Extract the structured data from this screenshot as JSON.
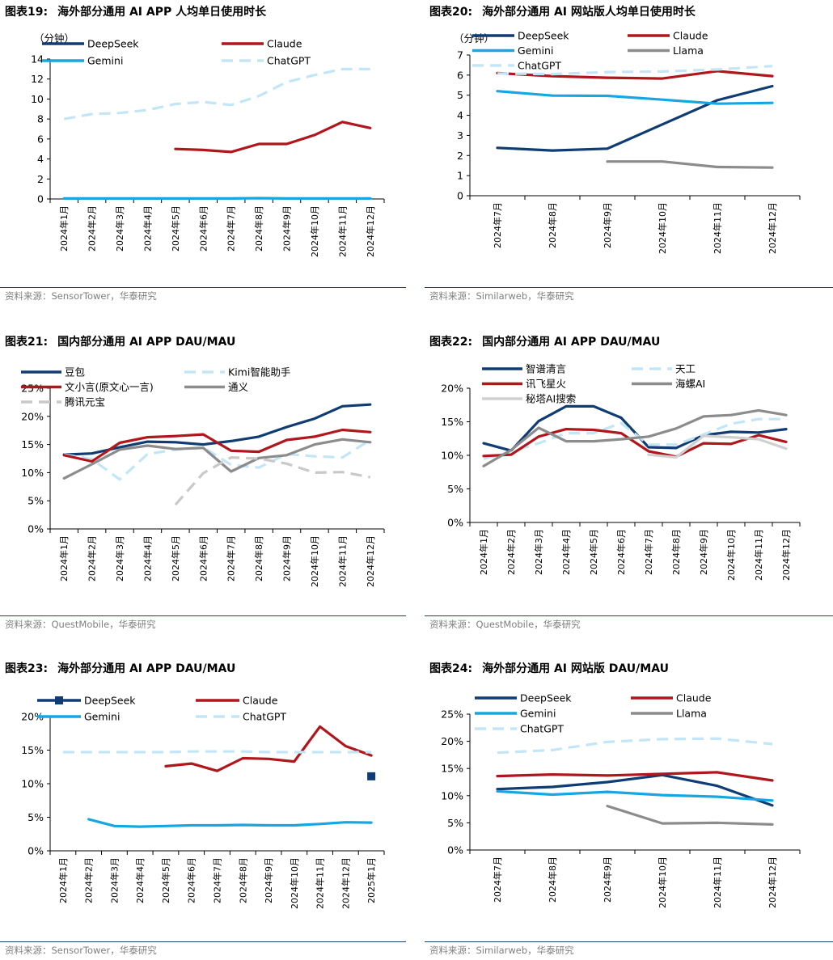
{
  "charts": [
    {
      "id": "fig19",
      "label": "图表19:",
      "title": "海外部分通用 AI APP 人均单日使用时长",
      "source": "资料来源：SensorTower，华泰研究",
      "chart_data": {
        "type": "line",
        "unit_label": "（分钟）",
        "categories": [
          "2024年1月",
          "2024年2月",
          "2024年3月",
          "2024年4月",
          "2024年5月",
          "2024年6月",
          "2024年7月",
          "2024年8月",
          "2024年9月",
          "2024年10月",
          "2024年11月",
          "2024年12月"
        ],
        "ylim": [
          0,
          14
        ],
        "yticks": [
          0,
          2,
          4,
          6,
          8,
          10,
          12,
          14
        ],
        "ytick_labels": [
          "0",
          "2",
          "4",
          "6",
          "8",
          "10",
          "12",
          "14"
        ],
        "legend_columns": 2,
        "series": [
          {
            "name": "DeepSeek",
            "color": "#0f3c73",
            "dash": false,
            "values": [
              null,
              null,
              null,
              null,
              null,
              null,
              null,
              null,
              null,
              null,
              null,
              null
            ]
          },
          {
            "name": "Claude",
            "color": "#b0161c",
            "dash": false,
            "values": [
              null,
              null,
              null,
              null,
              5.0,
              4.9,
              4.7,
              5.5,
              5.5,
              6.4,
              7.7,
              7.1
            ]
          },
          {
            "name": "Gemini",
            "color": "#16a7e0",
            "dash": false,
            "values": [
              0.05,
              0.05,
              0.05,
              0.05,
              0.05,
              0.05,
              0.05,
              0.08,
              0.05,
              0.05,
              0.05,
              0.05
            ]
          },
          {
            "name": "ChatGPT",
            "color": "#c3e6f6",
            "dash": true,
            "values": [
              8.0,
              8.5,
              8.6,
              8.9,
              9.5,
              9.7,
              9.4,
              10.3,
              11.7,
              12.4,
              13.0,
              13.0
            ]
          }
        ]
      }
    },
    {
      "id": "fig20",
      "label": "图表20:",
      "title": "海外部分通用 AI 网站版人均单日使用时长",
      "source": "资料来源：Similarweb，华泰研究",
      "chart_data": {
        "type": "line",
        "unit_label": "（分钟）",
        "categories": [
          "2024年7月",
          "2024年8月",
          "2024年9月",
          "2024年10月",
          "2024年11月",
          "2024年12月"
        ],
        "ylim": [
          0,
          7
        ],
        "yticks": [
          0,
          1,
          2,
          3,
          4,
          5,
          6,
          7
        ],
        "ytick_labels": [
          "0",
          "1",
          "2",
          "3",
          "4",
          "5",
          "6",
          "7"
        ],
        "legend_columns": 2,
        "series": [
          {
            "name": "DeepSeek",
            "color": "#0f3c73",
            "dash": false,
            "values": [
              2.38,
              2.25,
              2.34,
              3.55,
              4.75,
              5.45
            ]
          },
          {
            "name": "Claude",
            "color": "#b0161c",
            "dash": false,
            "values": [
              6.1,
              5.95,
              5.87,
              5.83,
              6.2,
              5.95
            ]
          },
          {
            "name": "Gemini",
            "color": "#16a7e0",
            "dash": false,
            "values": [
              5.2,
              4.98,
              4.97,
              4.78,
              4.58,
              4.62
            ]
          },
          {
            "name": "Llama",
            "color": "#8c8c8c",
            "dash": false,
            "values": [
              null,
              null,
              1.7,
              1.7,
              1.43,
              1.4
            ]
          },
          {
            "name": "ChatGPT",
            "color": "#c3e6f6",
            "dash": true,
            "values": [
              6.08,
              6.05,
              6.15,
              6.18,
              6.28,
              6.45
            ]
          }
        ]
      }
    },
    {
      "id": "fig21",
      "label": "图表21:",
      "title": "国内部分通用 AI APP DAU/MAU",
      "source": "资料来源：QuestMobile，华泰研究",
      "chart_data": {
        "type": "line",
        "unit_label": "",
        "categories": [
          "2024年1月",
          "2024年2月",
          "2024年3月",
          "2024年4月",
          "2024年5月",
          "2024年6月",
          "2024年7月",
          "2024年8月",
          "2024年9月",
          "2024年10月",
          "2024年11月",
          "2024年12月"
        ],
        "ylim": [
          0,
          25
        ],
        "yticks": [
          0,
          5,
          10,
          15,
          20,
          25
        ],
        "ytick_labels": [
          "0%",
          "5%",
          "10%",
          "15%",
          "20%",
          "25%"
        ],
        "legend_columns": 2,
        "series": [
          {
            "name": "豆包",
            "color": "#0f3c73",
            "dash": false,
            "values": [
              13.2,
              13.4,
              14.5,
              15.5,
              15.4,
              15.0,
              15.6,
              16.4,
              18.1,
              19.6,
              21.8,
              22.1
            ]
          },
          {
            "name": "Kimi智能助手",
            "color": "#c3e6f6",
            "dash": true,
            "values": [
              13.2,
              12.4,
              8.8,
              13.3,
              14.1,
              14.5,
              11.4,
              10.9,
              13.3,
              12.9,
              12.7,
              15.8
            ]
          },
          {
            "name": "文小言(原文心一言)",
            "color": "#b0161c",
            "dash": false,
            "values": [
              13.1,
              12.0,
              15.3,
              16.3,
              16.5,
              16.8,
              13.9,
              13.7,
              15.8,
              16.4,
              17.6,
              17.2
            ]
          },
          {
            "name": "通义",
            "color": "#8c8c8c",
            "dash": false,
            "values": [
              9.0,
              11.5,
              14.1,
              14.8,
              14.2,
              14.4,
              10.2,
              12.6,
              13.1,
              15.0,
              15.9,
              15.4
            ]
          },
          {
            "name": "腾讯元宝",
            "color": "#c9c9c9",
            "dash": true,
            "values": [
              null,
              null,
              null,
              null,
              4.3,
              9.9,
              12.7,
              12.5,
              11.6,
              10.0,
              10.1,
              9.2
            ]
          }
        ]
      }
    },
    {
      "id": "fig22",
      "label": "图表22:",
      "title": "国内部分通用 AI APP DAU/MAU",
      "source": "资料来源：QuestMobile，华泰研究",
      "chart_data": {
        "type": "line",
        "unit_label": "",
        "categories": [
          "2024年1月",
          "2024年2月",
          "2024年3月",
          "2024年4月",
          "2024年5月",
          "2024年6月",
          "2024年7月",
          "2024年8月",
          "2024年9月",
          "2024年10月",
          "2024年11月",
          "2024年12月"
        ],
        "ylim": [
          0,
          20
        ],
        "yticks": [
          0,
          5,
          10,
          15,
          20
        ],
        "ytick_labels": [
          "0%",
          "5%",
          "10%",
          "15%",
          "20%"
        ],
        "legend_columns": 2,
        "series": [
          {
            "name": "智谱清言",
            "color": "#0f3c73",
            "dash": false,
            "values": [
              11.8,
              10.7,
              15.1,
              17.3,
              17.3,
              15.6,
              11.2,
              11.1,
              13.0,
              13.5,
              13.4,
              13.9
            ]
          },
          {
            "name": "天工",
            "color": "#c3e6f6",
            "dash": true,
            "values": [
              9.5,
              10.5,
              11.8,
              13.3,
              13.3,
              14.8,
              11.6,
              11.6,
              13.1,
              14.7,
              15.4,
              15.4
            ]
          },
          {
            "name": "讯飞星火",
            "color": "#b0161c",
            "dash": false,
            "values": [
              9.9,
              10.1,
              12.8,
              13.9,
              13.8,
              13.3,
              10.6,
              9.8,
              11.8,
              11.7,
              13.0,
              12.0
            ]
          },
          {
            "name": "海螺AI",
            "color": "#8c8c8c",
            "dash": false,
            "values": [
              8.4,
              10.8,
              14.1,
              12.1,
              12.1,
              12.4,
              12.8,
              14.0,
              15.8,
              16.0,
              16.7,
              16.0
            ]
          },
          {
            "name": "秘塔AI搜索",
            "color": "#d0d0d0",
            "dash": false,
            "values": [
              null,
              null,
              null,
              null,
              null,
              null,
              10.1,
              9.7,
              12.9,
              12.7,
              12.4,
              11.0
            ]
          }
        ]
      }
    },
    {
      "id": "fig23",
      "label": "图表23:",
      "title": "海外部分通用 AI APP DAU/MAU",
      "source": "资料来源：SensorTower，华泰研究",
      "chart_data": {
        "type": "line",
        "unit_label": "",
        "categories": [
          "2024年1月",
          "2024年2月",
          "2024年3月",
          "2024年4月",
          "2024年5月",
          "2024年6月",
          "2024年7月",
          "2024年8月",
          "2024年9月",
          "2024年10月",
          "2024年11月",
          "2024年12月",
          "2025年1月"
        ],
        "ylim": [
          0,
          20
        ],
        "yticks": [
          0,
          5,
          10,
          15,
          20
        ],
        "ytick_labels": [
          "0%",
          "5%",
          "10%",
          "15%",
          "20%"
        ],
        "legend_columns": 2,
        "series": [
          {
            "name": "DeepSeek",
            "color": "#0f3c73",
            "dash": false,
            "marker": "square",
            "values": [
              null,
              null,
              null,
              null,
              null,
              null,
              null,
              null,
              null,
              null,
              null,
              null,
              11.1
            ]
          },
          {
            "name": "Claude",
            "color": "#b0161c",
            "dash": false,
            "values": [
              null,
              null,
              null,
              null,
              12.6,
              13.0,
              11.9,
              13.8,
              13.7,
              13.3,
              18.5,
              15.6,
              14.2
            ]
          },
          {
            "name": "Gemini",
            "color": "#16a7e0",
            "dash": false,
            "values": [
              null,
              4.7,
              3.7,
              3.6,
              3.7,
              3.8,
              3.8,
              3.85,
              3.8,
              3.8,
              4.0,
              4.25,
              4.2
            ]
          },
          {
            "name": "ChatGPT",
            "color": "#c3e6f6",
            "dash": true,
            "values": [
              14.7,
              14.7,
              14.7,
              14.7,
              14.7,
              14.8,
              14.8,
              14.8,
              14.7,
              14.7,
              14.7,
              14.7,
              14.7
            ]
          }
        ]
      }
    },
    {
      "id": "fig24",
      "label": "图表24:",
      "title": "海外部分通用 AI 网站版 DAU/MAU",
      "source": "资料来源：Similarweb，华泰研究",
      "chart_data": {
        "type": "line",
        "unit_label": "",
        "categories": [
          "2024年7月",
          "2024年8月",
          "2024年9月",
          "2024年10月",
          "2024年11月",
          "2024年12月"
        ],
        "ylim": [
          0,
          25
        ],
        "yticks": [
          0,
          5,
          10,
          15,
          20,
          25
        ],
        "ytick_labels": [
          "0%",
          "5%",
          "10%",
          "15%",
          "20%",
          "25%"
        ],
        "legend_columns": 2,
        "series": [
          {
            "name": "DeepSeek",
            "color": "#0f3c73",
            "dash": false,
            "values": [
              11.2,
              11.6,
              12.5,
              13.8,
              11.8,
              8.2
            ]
          },
          {
            "name": "Claude",
            "color": "#b0161c",
            "dash": false,
            "values": [
              13.6,
              13.9,
              13.7,
              14.0,
              14.3,
              12.8
            ]
          },
          {
            "name": "Gemini",
            "color": "#16a7e0",
            "dash": false,
            "values": [
              10.8,
              10.2,
              10.7,
              10.1,
              9.8,
              9.1
            ]
          },
          {
            "name": "Llama",
            "color": "#8c8c8c",
            "dash": false,
            "values": [
              null,
              null,
              8.1,
              4.9,
              5.0,
              4.7
            ]
          },
          {
            "name": "ChatGPT",
            "color": "#c3e6f6",
            "dash": true,
            "values": [
              17.9,
              18.4,
              19.9,
              20.4,
              20.5,
              19.5
            ]
          }
        ]
      }
    }
  ]
}
